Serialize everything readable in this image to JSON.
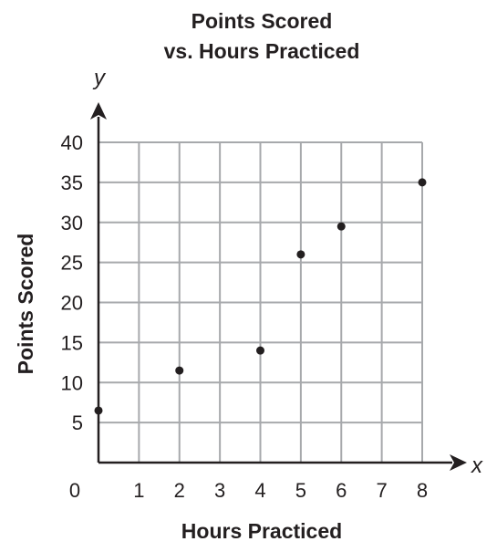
{
  "colors": {
    "grid": "#a7a9ac",
    "axis": "#231f20",
    "point": "#231f20",
    "text": "#231f20"
  },
  "chart_data": {
    "type": "scatter",
    "title_line1": "Points Scored",
    "title_line2": "vs. Hours Practiced",
    "xlabel": "Hours Practiced",
    "ylabel": "Points Scored",
    "x_var": "x",
    "y_var": "y",
    "origin_label": "0",
    "grid": true,
    "xlim": [
      0,
      8
    ],
    "ylim": [
      0,
      40
    ],
    "x_ticks": [
      1,
      2,
      3,
      4,
      5,
      6,
      7,
      8
    ],
    "x_tick_labels": [
      "1",
      "2",
      "3",
      "4",
      "5",
      "6",
      "7",
      "8"
    ],
    "y_ticks": [
      5,
      10,
      15,
      20,
      25,
      30,
      35,
      40
    ],
    "y_tick_labels": [
      "5",
      "10",
      "15",
      "20",
      "25",
      "30",
      "35",
      "40"
    ],
    "points": [
      {
        "x": 0,
        "y": 6.5
      },
      {
        "x": 2,
        "y": 11.5
      },
      {
        "x": 4,
        "y": 14
      },
      {
        "x": 5,
        "y": 26
      },
      {
        "x": 6,
        "y": 29.5
      },
      {
        "x": 8,
        "y": 35
      }
    ]
  }
}
